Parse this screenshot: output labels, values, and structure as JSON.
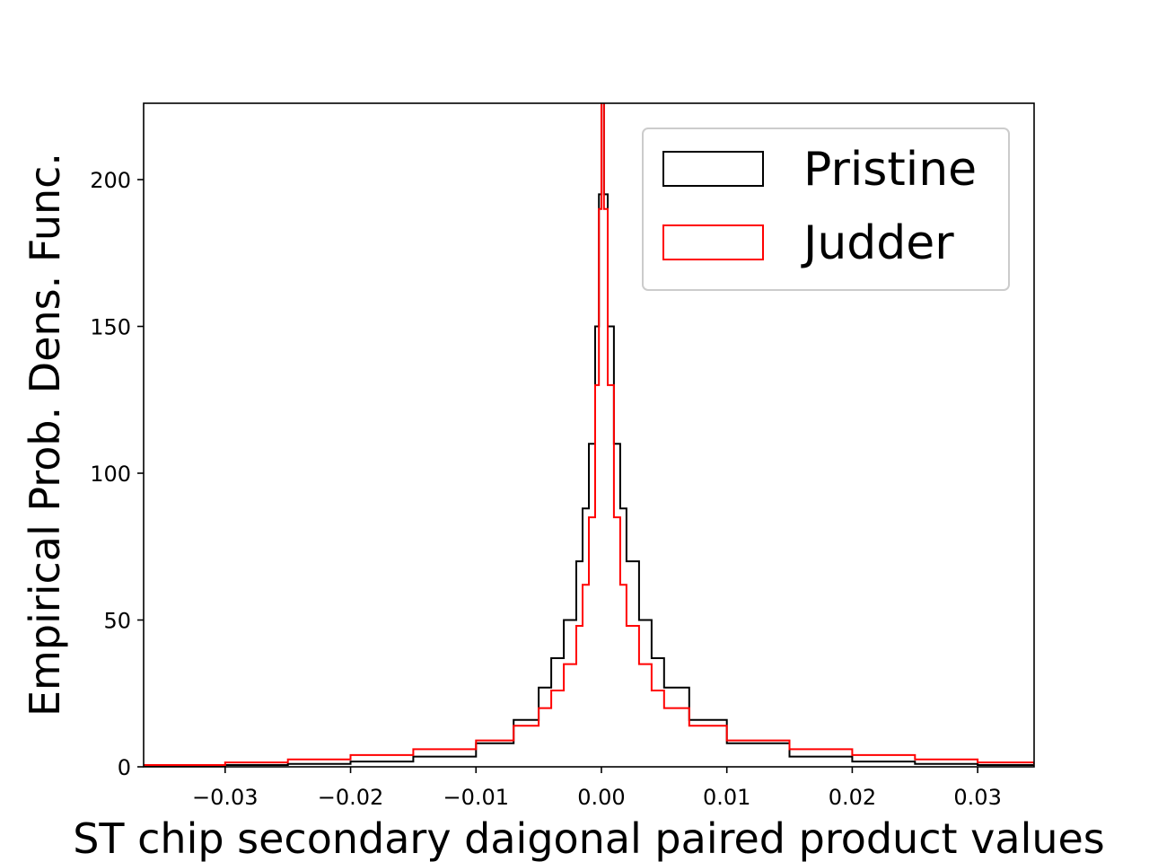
{
  "chart_data": {
    "type": "line",
    "title": "",
    "xlabel": "ST chip secondary daigonal paired product values",
    "ylabel": "Empirical Prob. Dens. Func.",
    "xlim": [
      -0.0365,
      0.0345
    ],
    "ylim": [
      0,
      226
    ],
    "xticks": [
      -0.03,
      -0.02,
      -0.01,
      0.0,
      0.01,
      0.02,
      0.03
    ],
    "xtick_labels": [
      "−0.03",
      "−0.02",
      "−0.01",
      "0.00",
      "0.01",
      "0.02",
      "0.03"
    ],
    "yticks": [
      0,
      50,
      100,
      150,
      200
    ],
    "ytick_labels": [
      "0",
      "50",
      "100",
      "150",
      "200"
    ],
    "grid": false,
    "legend_position": "top-right",
    "series": [
      {
        "name": "Pristine",
        "color": "#000000",
        "x": [
          -0.0365,
          -0.03,
          -0.025,
          -0.02,
          -0.015,
          -0.01,
          -0.007,
          -0.005,
          -0.004,
          -0.003,
          -0.002,
          -0.0015,
          -0.001,
          -0.0005,
          -0.0002,
          0.0,
          0.0002,
          0.0005,
          0.001,
          0.0015,
          0.002,
          0.003,
          0.004,
          0.005,
          0.007,
          0.01,
          0.015,
          0.02,
          0.025,
          0.03,
          0.0345
        ],
        "y": [
          0.3,
          0.6,
          1.0,
          1.8,
          3.5,
          8,
          16,
          27,
          37,
          50,
          70,
          88,
          110,
          150,
          195,
          240,
          195,
          150,
          110,
          88,
          70,
          50,
          37,
          27,
          16,
          8,
          3.5,
          1.8,
          1.0,
          0.6,
          0.3
        ]
      },
      {
        "name": "Judder",
        "color": "#ff0000",
        "x": [
          -0.0365,
          -0.03,
          -0.025,
          -0.02,
          -0.015,
          -0.01,
          -0.007,
          -0.005,
          -0.004,
          -0.003,
          -0.002,
          -0.0015,
          -0.001,
          -0.0005,
          -0.0002,
          0.0,
          0.0002,
          0.0005,
          0.001,
          0.0015,
          0.002,
          0.003,
          0.004,
          0.005,
          0.007,
          0.01,
          0.015,
          0.02,
          0.025,
          0.03,
          0.0345
        ],
        "y": [
          0.6,
          1.5,
          2.5,
          4.0,
          6.0,
          9,
          14,
          20,
          26,
          35,
          48,
          62,
          85,
          130,
          190,
          240,
          190,
          130,
          85,
          62,
          48,
          35,
          26,
          20,
          14,
          9,
          6.0,
          4.0,
          2.5,
          1.5,
          0.6
        ]
      }
    ]
  }
}
